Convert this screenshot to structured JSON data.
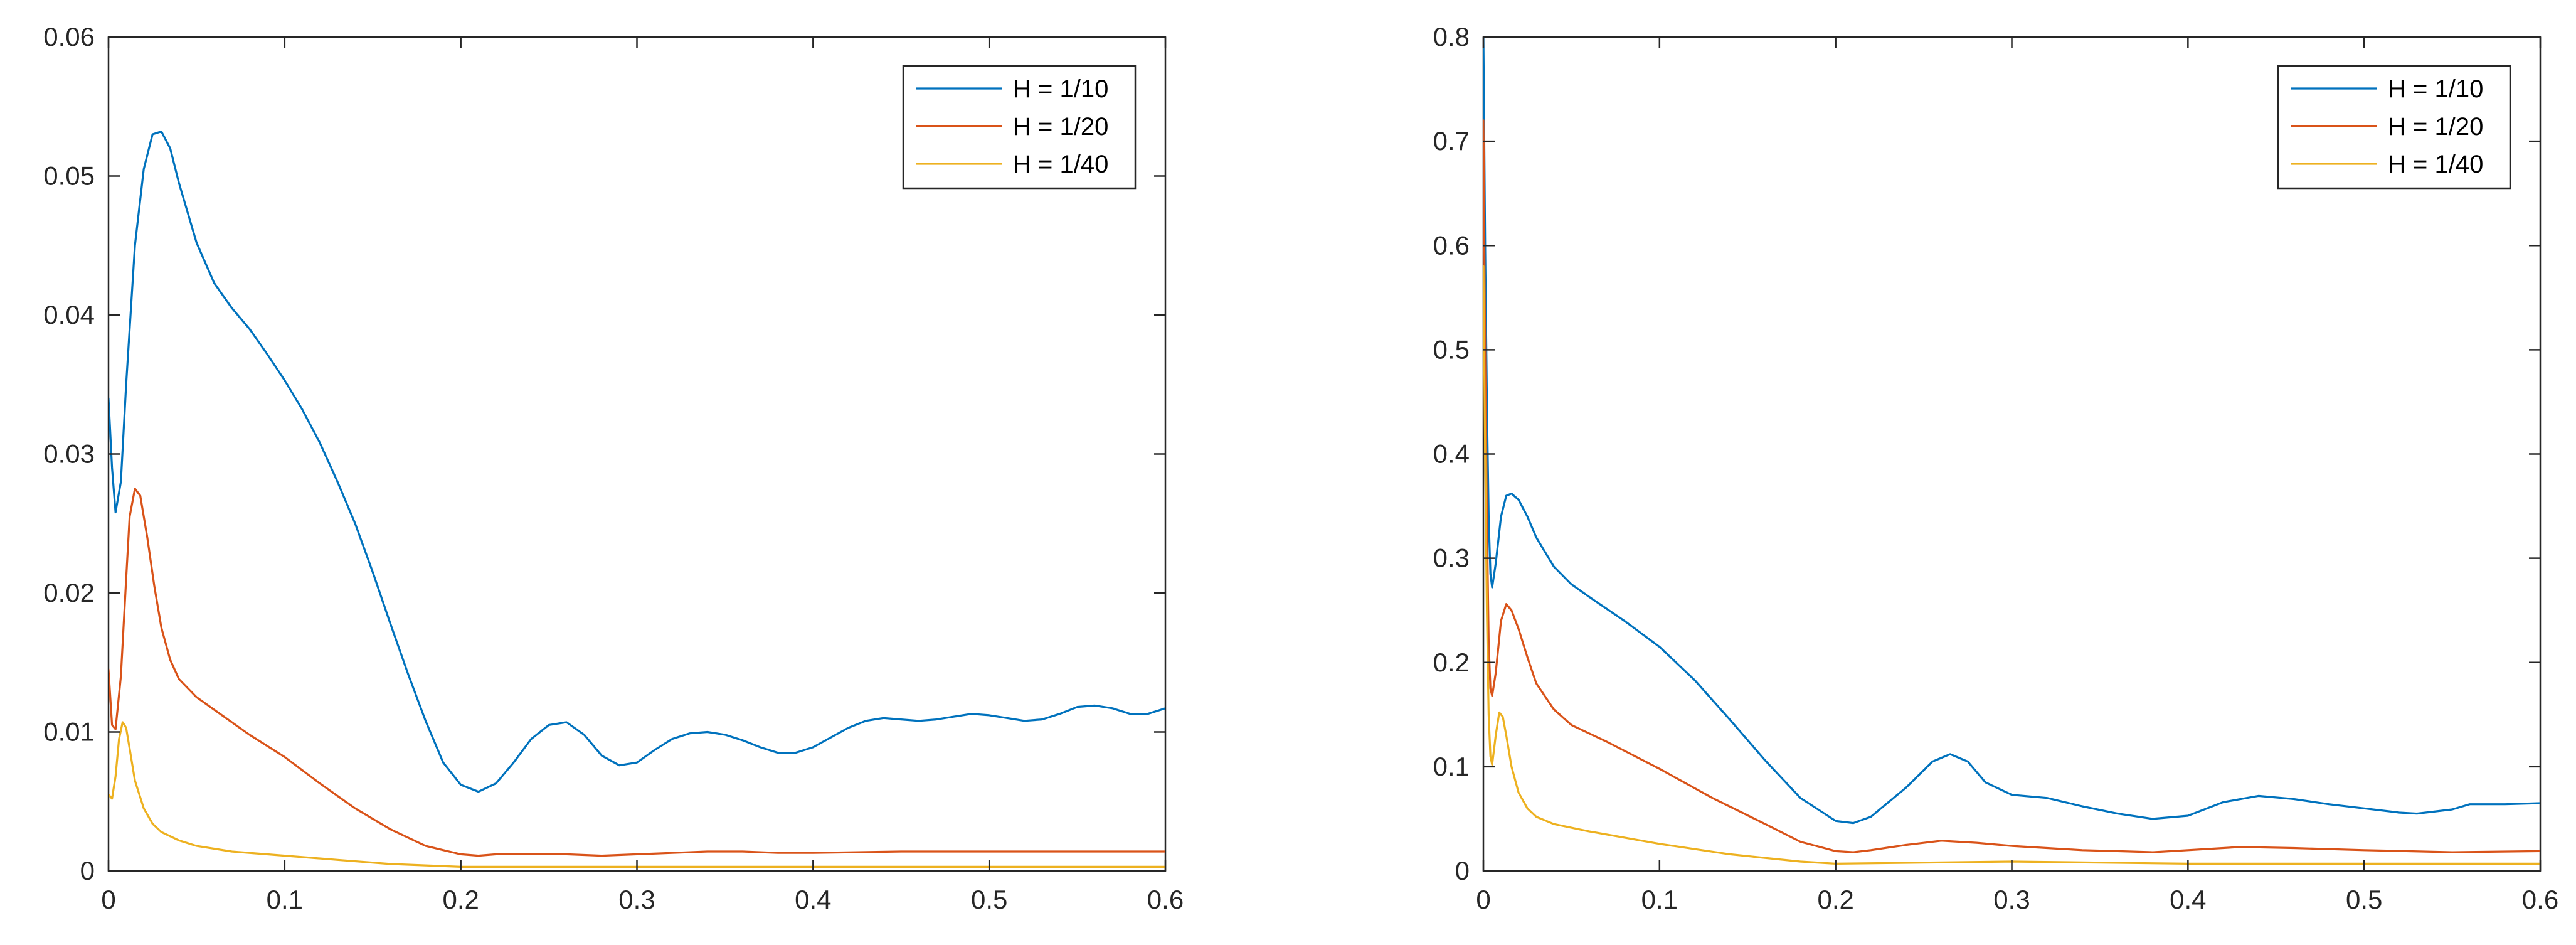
{
  "colors": {
    "series1": "#0072BD",
    "series2": "#D95319",
    "series3": "#EDB120"
  },
  "chart_data": [
    {
      "type": "line",
      "title": "",
      "xlabel": "",
      "ylabel": "",
      "xlim": [
        0,
        0.6
      ],
      "ylim": [
        0,
        0.06
      ],
      "xticks": [
        0,
        0.1,
        0.2,
        0.3,
        0.4,
        0.5,
        0.6
      ],
      "xtick_labels": [
        "0",
        "0.1",
        "0.2",
        "0.3",
        "0.4",
        "0.5",
        "0.6"
      ],
      "yticks": [
        0,
        0.01,
        0.02,
        0.03,
        0.04,
        0.05,
        0.06
      ],
      "ytick_labels": [
        "0",
        "0.01",
        "0.02",
        "0.03",
        "0.04",
        "0.05",
        "0.06"
      ],
      "legend_position": "top-right",
      "series": [
        {
          "name": "H = 1/10",
          "color": "#0072BD",
          "points": [
            [
              0,
              0.034
            ],
            [
              0.002,
              0.029
            ],
            [
              0.004,
              0.0258
            ],
            [
              0.007,
              0.028
            ],
            [
              0.01,
              0.035
            ],
            [
              0.015,
              0.045
            ],
            [
              0.02,
              0.0505
            ],
            [
              0.025,
              0.053
            ],
            [
              0.03,
              0.0532
            ],
            [
              0.035,
              0.052
            ],
            [
              0.04,
              0.0495
            ],
            [
              0.05,
              0.0452
            ],
            [
              0.06,
              0.0423
            ],
            [
              0.07,
              0.0405
            ],
            [
              0.08,
              0.039
            ],
            [
              0.09,
              0.0372
            ],
            [
              0.1,
              0.0353
            ],
            [
              0.11,
              0.0332
            ],
            [
              0.12,
              0.0308
            ],
            [
              0.13,
              0.028
            ],
            [
              0.14,
              0.025
            ],
            [
              0.15,
              0.0215
            ],
            [
              0.16,
              0.0178
            ],
            [
              0.17,
              0.0142
            ],
            [
              0.18,
              0.0108
            ],
            [
              0.19,
              0.0078
            ],
            [
              0.2,
              0.0062
            ],
            [
              0.21,
              0.0057
            ],
            [
              0.22,
              0.0063
            ],
            [
              0.23,
              0.0078
            ],
            [
              0.24,
              0.0095
            ],
            [
              0.25,
              0.0105
            ],
            [
              0.26,
              0.0107
            ],
            [
              0.27,
              0.0098
            ],
            [
              0.28,
              0.0083
            ],
            [
              0.29,
              0.0076
            ],
            [
              0.3,
              0.0078
            ],
            [
              0.31,
              0.0087
            ],
            [
              0.32,
              0.0095
            ],
            [
              0.33,
              0.0099
            ],
            [
              0.34,
              0.01
            ],
            [
              0.35,
              0.0098
            ],
            [
              0.36,
              0.0094
            ],
            [
              0.37,
              0.0089
            ],
            [
              0.38,
              0.0085
            ],
            [
              0.39,
              0.0085
            ],
            [
              0.4,
              0.0089
            ],
            [
              0.41,
              0.0096
            ],
            [
              0.42,
              0.0103
            ],
            [
              0.43,
              0.0108
            ],
            [
              0.44,
              0.011
            ],
            [
              0.45,
              0.0109
            ],
            [
              0.46,
              0.0108
            ],
            [
              0.47,
              0.0109
            ],
            [
              0.48,
              0.0111
            ],
            [
              0.49,
              0.0113
            ],
            [
              0.5,
              0.0112
            ],
            [
              0.51,
              0.011
            ],
            [
              0.52,
              0.0108
            ],
            [
              0.53,
              0.0109
            ],
            [
              0.54,
              0.0113
            ],
            [
              0.55,
              0.0118
            ],
            [
              0.56,
              0.0119
            ],
            [
              0.57,
              0.0117
            ],
            [
              0.58,
              0.0113
            ],
            [
              0.59,
              0.0113
            ],
            [
              0.6,
              0.0117
            ]
          ]
        },
        {
          "name": "H = 1/20",
          "color": "#D95319",
          "points": [
            [
              0,
              0.0145
            ],
            [
              0.002,
              0.0105
            ],
            [
              0.004,
              0.0102
            ],
            [
              0.007,
              0.014
            ],
            [
              0.01,
              0.021
            ],
            [
              0.012,
              0.0255
            ],
            [
              0.015,
              0.0275
            ],
            [
              0.018,
              0.027
            ],
            [
              0.022,
              0.024
            ],
            [
              0.026,
              0.0205
            ],
            [
              0.03,
              0.0175
            ],
            [
              0.035,
              0.0152
            ],
            [
              0.04,
              0.0138
            ],
            [
              0.05,
              0.0125
            ],
            [
              0.06,
              0.0116
            ],
            [
              0.08,
              0.0098
            ],
            [
              0.1,
              0.0082
            ],
            [
              0.12,
              0.0063
            ],
            [
              0.14,
              0.0045
            ],
            [
              0.16,
              0.003
            ],
            [
              0.18,
              0.0018
            ],
            [
              0.2,
              0.0012
            ],
            [
              0.21,
              0.0011
            ],
            [
              0.22,
              0.0012
            ],
            [
              0.24,
              0.0012
            ],
            [
              0.26,
              0.0012
            ],
            [
              0.28,
              0.0011
            ],
            [
              0.3,
              0.0012
            ],
            [
              0.32,
              0.0013
            ],
            [
              0.34,
              0.0014
            ],
            [
              0.36,
              0.0014
            ],
            [
              0.38,
              0.0013
            ],
            [
              0.4,
              0.0013
            ],
            [
              0.45,
              0.0014
            ],
            [
              0.5,
              0.0014
            ],
            [
              0.55,
              0.0014
            ],
            [
              0.6,
              0.0014
            ]
          ]
        },
        {
          "name": "H = 1/40",
          "color": "#EDB120",
          "points": [
            [
              0,
              0.0055
            ],
            [
              0.002,
              0.0052
            ],
            [
              0.004,
              0.0068
            ],
            [
              0.006,
              0.0095
            ],
            [
              0.008,
              0.0107
            ],
            [
              0.01,
              0.0103
            ],
            [
              0.012,
              0.0088
            ],
            [
              0.015,
              0.0065
            ],
            [
              0.02,
              0.0045
            ],
            [
              0.025,
              0.0034
            ],
            [
              0.03,
              0.0028
            ],
            [
              0.04,
              0.0022
            ],
            [
              0.05,
              0.0018
            ],
            [
              0.07,
              0.0014
            ],
            [
              0.1,
              0.0011
            ],
            [
              0.13,
              0.0008
            ],
            [
              0.16,
              0.0005
            ],
            [
              0.2,
              0.0003
            ],
            [
              0.3,
              0.0003
            ],
            [
              0.4,
              0.0003
            ],
            [
              0.5,
              0.0003
            ],
            [
              0.6,
              0.0003
            ]
          ]
        }
      ]
    },
    {
      "type": "line",
      "title": "",
      "xlabel": "",
      "ylabel": "",
      "xlim": [
        0,
        0.6
      ],
      "ylim": [
        0,
        0.8
      ],
      "xticks": [
        0,
        0.1,
        0.2,
        0.3,
        0.4,
        0.5,
        0.6
      ],
      "xtick_labels": [
        "0",
        "0.1",
        "0.2",
        "0.3",
        "0.4",
        "0.5",
        "0.6"
      ],
      "yticks": [
        0,
        0.1,
        0.2,
        0.3,
        0.4,
        0.5,
        0.6,
        0.7,
        0.8
      ],
      "ytick_labels": [
        "0",
        "0.1",
        "0.2",
        "0.3",
        "0.4",
        "0.5",
        "0.6",
        "0.7",
        "0.8"
      ],
      "legend_position": "top-right",
      "series": [
        {
          "name": "H = 1/10",
          "color": "#0072BD",
          "points": [
            [
              0,
              0.8
            ],
            [
              0.001,
              0.6
            ],
            [
              0.002,
              0.45
            ],
            [
              0.003,
              0.34
            ],
            [
              0.004,
              0.285
            ],
            [
              0.005,
              0.272
            ],
            [
              0.007,
              0.295
            ],
            [
              0.01,
              0.34
            ],
            [
              0.013,
              0.36
            ],
            [
              0.016,
              0.362
            ],
            [
              0.02,
              0.356
            ],
            [
              0.025,
              0.34
            ],
            [
              0.03,
              0.32
            ],
            [
              0.04,
              0.292
            ],
            [
              0.05,
              0.275
            ],
            [
              0.06,
              0.263
            ],
            [
              0.08,
              0.24
            ],
            [
              0.1,
              0.215
            ],
            [
              0.12,
              0.183
            ],
            [
              0.14,
              0.145
            ],
            [
              0.16,
              0.106
            ],
            [
              0.18,
              0.07
            ],
            [
              0.2,
              0.048
            ],
            [
              0.21,
              0.046
            ],
            [
              0.22,
              0.052
            ],
            [
              0.24,
              0.08
            ],
            [
              0.255,
              0.105
            ],
            [
              0.265,
              0.112
            ],
            [
              0.275,
              0.105
            ],
            [
              0.285,
              0.085
            ],
            [
              0.3,
              0.073
            ],
            [
              0.32,
              0.07
            ],
            [
              0.34,
              0.062
            ],
            [
              0.36,
              0.055
            ],
            [
              0.38,
              0.05
            ],
            [
              0.4,
              0.053
            ],
            [
              0.42,
              0.066
            ],
            [
              0.44,
              0.072
            ],
            [
              0.46,
              0.069
            ],
            [
              0.48,
              0.064
            ],
            [
              0.5,
              0.06
            ],
            [
              0.52,
              0.056
            ],
            [
              0.53,
              0.055
            ],
            [
              0.55,
              0.059
            ],
            [
              0.56,
              0.064
            ],
            [
              0.58,
              0.064
            ],
            [
              0.6,
              0.065
            ]
          ]
        },
        {
          "name": "H = 1/20",
          "color": "#D95319",
          "points": [
            [
              0,
              0.72
            ],
            [
              0.001,
              0.5
            ],
            [
              0.002,
              0.34
            ],
            [
              0.003,
              0.22
            ],
            [
              0.004,
              0.175
            ],
            [
              0.005,
              0.168
            ],
            [
              0.007,
              0.19
            ],
            [
              0.01,
              0.24
            ],
            [
              0.013,
              0.256
            ],
            [
              0.016,
              0.25
            ],
            [
              0.02,
              0.232
            ],
            [
              0.025,
              0.205
            ],
            [
              0.03,
              0.18
            ],
            [
              0.04,
              0.155
            ],
            [
              0.05,
              0.14
            ],
            [
              0.07,
              0.124
            ],
            [
              0.1,
              0.098
            ],
            [
              0.13,
              0.07
            ],
            [
              0.16,
              0.045
            ],
            [
              0.18,
              0.028
            ],
            [
              0.2,
              0.019
            ],
            [
              0.21,
              0.018
            ],
            [
              0.22,
              0.02
            ],
            [
              0.24,
              0.025
            ],
            [
              0.26,
              0.029
            ],
            [
              0.28,
              0.027
            ],
            [
              0.3,
              0.024
            ],
            [
              0.32,
              0.022
            ],
            [
              0.34,
              0.02
            ],
            [
              0.36,
              0.019
            ],
            [
              0.38,
              0.018
            ],
            [
              0.4,
              0.02
            ],
            [
              0.43,
              0.023
            ],
            [
              0.46,
              0.022
            ],
            [
              0.5,
              0.02
            ],
            [
              0.55,
              0.018
            ],
            [
              0.6,
              0.019
            ]
          ]
        },
        {
          "name": "H = 1/40",
          "color": "#EDB120",
          "points": [
            [
              0,
              0.58
            ],
            [
              0.001,
              0.4
            ],
            [
              0.002,
              0.25
            ],
            [
              0.003,
              0.15
            ],
            [
              0.004,
              0.11
            ],
            [
              0.005,
              0.102
            ],
            [
              0.007,
              0.13
            ],
            [
              0.009,
              0.152
            ],
            [
              0.011,
              0.148
            ],
            [
              0.013,
              0.13
            ],
            [
              0.016,
              0.1
            ],
            [
              0.02,
              0.075
            ],
            [
              0.025,
              0.06
            ],
            [
              0.03,
              0.052
            ],
            [
              0.04,
              0.045
            ],
            [
              0.06,
              0.038
            ],
            [
              0.1,
              0.026
            ],
            [
              0.14,
              0.016
            ],
            [
              0.18,
              0.009
            ],
            [
              0.2,
              0.007
            ],
            [
              0.25,
              0.008
            ],
            [
              0.3,
              0.009
            ],
            [
              0.35,
              0.008
            ],
            [
              0.4,
              0.007
            ],
            [
              0.5,
              0.007
            ],
            [
              0.6,
              0.007
            ]
          ]
        }
      ]
    }
  ]
}
